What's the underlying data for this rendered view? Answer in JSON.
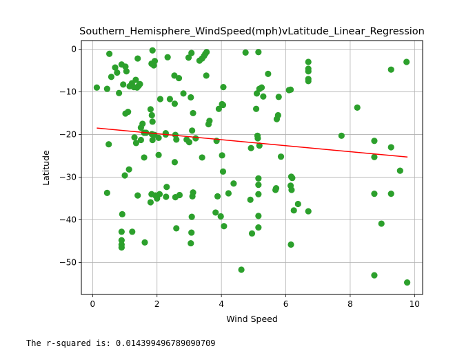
{
  "footer_text": "The r-squared is: 0.014399496789090709",
  "chart_data": {
    "type": "scatter",
    "title": "Southern_Hemisphere_WindSpeed(mph)vLatitude_Linear_Regression",
    "xlabel": "Wind Speed",
    "ylabel": "Latitude",
    "xlim": [
      -0.35,
      10.25
    ],
    "ylim": [
      -57.5,
      2.0
    ],
    "xticks": [
      0,
      2,
      4,
      6,
      8,
      10
    ],
    "yticks": [
      0,
      -10,
      -20,
      -30,
      -40,
      -50
    ],
    "grid": true,
    "point_color": "#2ca02c",
    "line_color": "#ff0000",
    "regression": {
      "x": [
        0.13,
        9.78
      ],
      "y": [
        -18.5,
        -25.3
      ]
    },
    "points": [
      [
        0.13,
        -9.0
      ],
      [
        0.45,
        -9.3
      ],
      [
        0.52,
        -1.1
      ],
      [
        0.58,
        -6.5
      ],
      [
        0.7,
        -4.3
      ],
      [
        0.76,
        -5.5
      ],
      [
        0.82,
        -10.3
      ],
      [
        0.9,
        -3.6
      ],
      [
        0.95,
        -8.3
      ],
      [
        1.02,
        -4.1
      ],
      [
        1.05,
        -5.2
      ],
      [
        1.1,
        -14.7
      ],
      [
        1.02,
        -15.1
      ],
      [
        1.15,
        -8.7
      ],
      [
        1.22,
        -8.0
      ],
      [
        1.28,
        -8.9
      ],
      [
        1.34,
        -7.2
      ],
      [
        1.38,
        -9.0
      ],
      [
        1.43,
        -8.6
      ],
      [
        1.47,
        -8.2
      ],
      [
        1.4,
        -2.2
      ],
      [
        1.6,
        -19.6
      ],
      [
        1.5,
        -18.4
      ],
      [
        1.55,
        -17.5
      ],
      [
        1.66,
        -19.6
      ],
      [
        1.8,
        -14.1
      ],
      [
        1.84,
        -15.5
      ],
      [
        1.86,
        -17.0
      ],
      [
        1.84,
        -19.9
      ],
      [
        1.86,
        -21.3
      ],
      [
        1.83,
        -3.4
      ],
      [
        1.9,
        -3.8
      ],
      [
        1.86,
        -0.3
      ],
      [
        1.93,
        -2.8
      ],
      [
        1.92,
        -20.1
      ],
      [
        2.05,
        -20.8
      ],
      [
        2.1,
        -11.7
      ],
      [
        2.27,
        -20.0
      ],
      [
        2.33,
        -1.9
      ],
      [
        2.4,
        -11.7
      ],
      [
        2.54,
        -6.2
      ],
      [
        2.55,
        -12.8
      ],
      [
        2.57,
        -20.1
      ],
      [
        2.6,
        -21.2
      ],
      [
        2.68,
        -6.8
      ],
      [
        2.82,
        -10.4
      ],
      [
        2.92,
        -21.2
      ],
      [
        2.98,
        -2.0
      ],
      [
        3.0,
        -21.8
      ],
      [
        3.05,
        -11.3
      ],
      [
        3.07,
        -0.9
      ],
      [
        3.09,
        -19.1
      ],
      [
        3.12,
        -15.0
      ],
      [
        3.2,
        -20.9
      ],
      [
        3.32,
        -2.7
      ],
      [
        3.4,
        -2.2
      ],
      [
        3.46,
        -1.6
      ],
      [
        3.5,
        -1.1
      ],
      [
        3.54,
        -0.7
      ],
      [
        3.53,
        -6.2
      ],
      [
        3.6,
        -17.6
      ],
      [
        3.63,
        -16.8
      ],
      [
        3.85,
        -21.5
      ],
      [
        3.92,
        -14.0
      ],
      [
        4.02,
        -12.9
      ],
      [
        4.06,
        -8.9
      ],
      [
        4.05,
        -13.1
      ],
      [
        4.02,
        -24.9
      ],
      [
        4.05,
        -28.7
      ],
      [
        0.45,
        -33.7
      ],
      [
        0.5,
        -22.3
      ],
      [
        0.92,
        -38.7
      ],
      [
        0.9,
        -42.8
      ],
      [
        0.9,
        -44.8
      ],
      [
        0.9,
        -45.8
      ],
      [
        0.9,
        -46.5
      ],
      [
        1.0,
        -29.6
      ],
      [
        1.13,
        -28.2
      ],
      [
        1.23,
        -42.8
      ],
      [
        1.3,
        -20.7
      ],
      [
        1.35,
        -22.0
      ],
      [
        1.4,
        -34.3
      ],
      [
        1.5,
        -21.3
      ],
      [
        1.6,
        -25.4
      ],
      [
        1.62,
        -45.3
      ],
      [
        1.83,
        -34.0
      ],
      [
        1.8,
        -35.9
      ],
      [
        1.95,
        -34.3
      ],
      [
        2.0,
        -35.0
      ],
      [
        2.05,
        -24.8
      ],
      [
        2.08,
        -34.0
      ],
      [
        2.27,
        -19.7
      ],
      [
        2.28,
        -34.6
      ],
      [
        2.3,
        -32.3
      ],
      [
        2.55,
        -26.5
      ],
      [
        2.57,
        -34.7
      ],
      [
        2.6,
        -42.0
      ],
      [
        2.7,
        -34.2
      ],
      [
        3.05,
        -45.5
      ],
      [
        3.07,
        -43.0
      ],
      [
        3.08,
        -39.3
      ],
      [
        3.1,
        -34.5
      ],
      [
        3.12,
        -33.6
      ],
      [
        3.4,
        -25.4
      ],
      [
        3.82,
        -38.3
      ],
      [
        3.88,
        -34.5
      ],
      [
        3.98,
        -39.2
      ],
      [
        4.08,
        -41.5
      ],
      [
        4.22,
        -33.8
      ],
      [
        4.38,
        -31.5
      ],
      [
        4.62,
        -51.7
      ],
      [
        4.75,
        -0.8
      ],
      [
        4.9,
        -35.3
      ],
      [
        4.92,
        -23.2
      ],
      [
        4.95,
        -43.2
      ],
      [
        5.08,
        -14.0
      ],
      [
        5.1,
        -10.4
      ],
      [
        5.12,
        -20.3
      ],
      [
        5.13,
        -20.9
      ],
      [
        5.15,
        -0.7
      ],
      [
        5.15,
        -30.3
      ],
      [
        5.15,
        -31.8
      ],
      [
        5.15,
        -34.0
      ],
      [
        5.15,
        -39.1
      ],
      [
        5.15,
        -41.8
      ],
      [
        5.18,
        -22.6
      ],
      [
        5.18,
        -9.3
      ],
      [
        5.25,
        -9.0
      ],
      [
        5.3,
        -11.1
      ],
      [
        5.45,
        -5.8
      ],
      [
        5.68,
        -33.0
      ],
      [
        5.7,
        -32.6
      ],
      [
        5.72,
        -16.4
      ],
      [
        5.76,
        -15.5
      ],
      [
        5.78,
        -11.2
      ],
      [
        5.85,
        -25.2
      ],
      [
        6.1,
        -9.6
      ],
      [
        6.15,
        -9.5
      ],
      [
        6.15,
        -32.0
      ],
      [
        6.17,
        -29.9
      ],
      [
        6.18,
        -33.0
      ],
      [
        6.16,
        -45.8
      ],
      [
        6.2,
        -30.2
      ],
      [
        6.25,
        -37.8
      ],
      [
        6.38,
        -36.3
      ],
      [
        6.7,
        -3.0
      ],
      [
        6.7,
        -4.6
      ],
      [
        6.7,
        -5.2
      ],
      [
        6.7,
        -7.0
      ],
      [
        6.7,
        -7.5
      ],
      [
        6.7,
        -38.0
      ],
      [
        7.73,
        -20.3
      ],
      [
        8.22,
        -13.7
      ],
      [
        8.75,
        -21.5
      ],
      [
        8.75,
        -25.3
      ],
      [
        8.75,
        -33.9
      ],
      [
        8.75,
        -53.0
      ],
      [
        8.97,
        -40.9
      ],
      [
        9.27,
        -4.8
      ],
      [
        9.27,
        -23.0
      ],
      [
        9.27,
        -33.9
      ],
      [
        9.55,
        -28.5
      ],
      [
        9.75,
        -3.0
      ],
      [
        9.77,
        -54.7
      ]
    ]
  }
}
